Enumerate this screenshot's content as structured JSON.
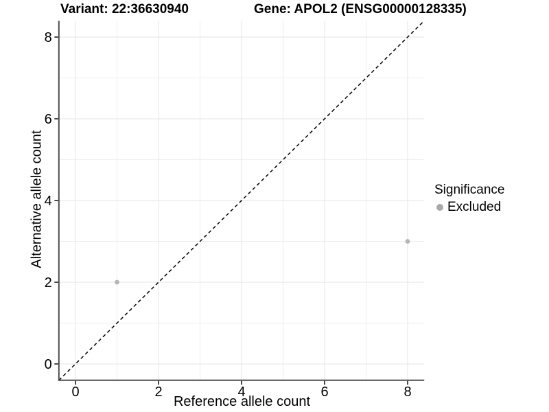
{
  "titles": {
    "variant": "Variant: 22:36630940",
    "gene": "Gene: APOL2 (ENSG00000128335)"
  },
  "chart_data": {
    "type": "scatter",
    "title": "Variant: 22:36630940 | Gene: APOL2 (ENSG00000128335)",
    "xlabel": "Reference allele count",
    "ylabel": "Alternative allele count",
    "xlim": [
      -0.4,
      8.4
    ],
    "ylim": [
      -0.4,
      8.4
    ],
    "x_ticks": [
      0,
      2,
      4,
      6,
      8
    ],
    "y_ticks": [
      0,
      2,
      4,
      6,
      8
    ],
    "x_minor": [
      1,
      3,
      5,
      7
    ],
    "y_minor": [
      1,
      3,
      5,
      7
    ],
    "grid": "major and minor gridlines at every integer, light gray on white",
    "series": [
      {
        "name": "Excluded",
        "marker": "circle",
        "color": "#b5b5b5",
        "points": [
          {
            "x": 1,
            "y": 2
          },
          {
            "x": 8,
            "y": 3
          }
        ]
      }
    ],
    "reference_line": {
      "kind": "identity y=x",
      "style": "dashed",
      "color": "#000000"
    },
    "legend": {
      "position": "right",
      "title": "Significance",
      "entries": [
        {
          "label": "Excluded",
          "color": "#a9a9a9"
        }
      ]
    }
  },
  "colors": {
    "background": "#ffffff",
    "grid_major": "#e4e4e4",
    "grid_minor": "#eeeeee",
    "axis_line": "#4d4d4d",
    "tick_mark": "#333333",
    "text": "#000000",
    "point": "#b5b5b5",
    "legend_point": "#a9a9a9",
    "dashed_line": "#000000"
  }
}
